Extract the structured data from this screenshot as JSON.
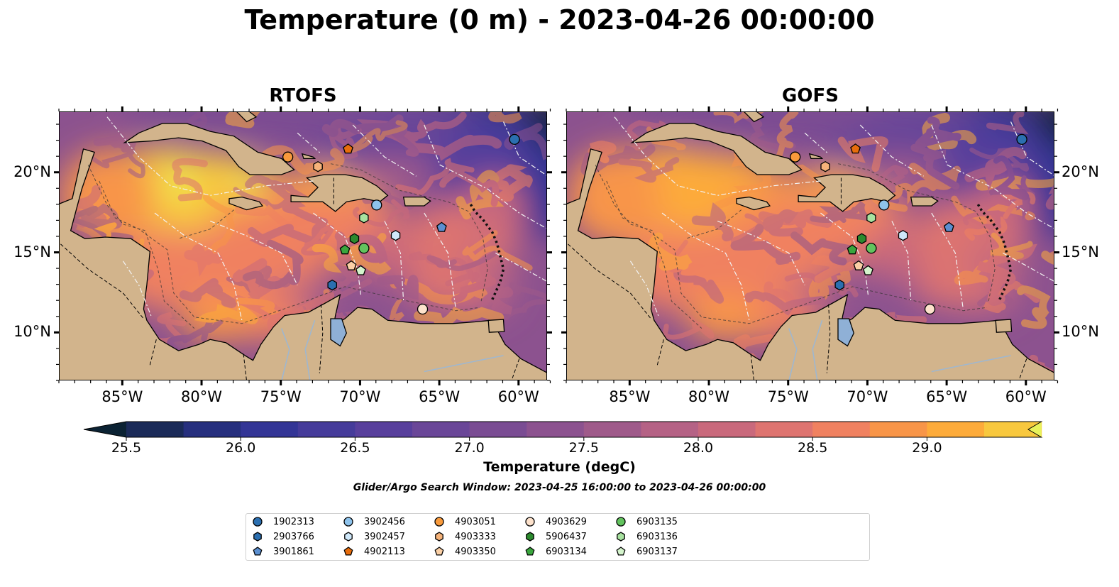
{
  "title": "Temperature (0 m) - 2023-04-26 00:00:00",
  "panels": [
    {
      "title": "RTOFS"
    },
    {
      "title": "GOFS"
    }
  ],
  "axes": {
    "lon_ticks": [
      "85°W",
      "80°W",
      "75°W",
      "70°W",
      "65°W",
      "60°W"
    ],
    "lat_ticks": [
      "20°N",
      "15°N",
      "10°N"
    ],
    "lon_range": [
      -89,
      -58.2
    ],
    "lat_range": [
      7.0,
      23.8
    ]
  },
  "colorbar": {
    "label": "Temperature (degC)",
    "ticks": [
      "25.5",
      "26.0",
      "26.5",
      "27.0",
      "27.5",
      "28.0",
      "28.5",
      "29.0"
    ],
    "levels": [
      25.25,
      25.5,
      25.75,
      26.0,
      26.25,
      26.5,
      26.75,
      27.0,
      27.25,
      27.5,
      27.75,
      28.0,
      28.25,
      28.5,
      28.75,
      29.0,
      29.25,
      29.5
    ],
    "colors": [
      "#0b2233",
      "#1a2a58",
      "#262f7e",
      "#333596",
      "#453b9a",
      "#583f9c",
      "#6a4698",
      "#7a4c93",
      "#8c528f",
      "#9f5a8a",
      "#b56285",
      "#c9697c",
      "#de7470",
      "#f08160",
      "#f89548",
      "#fdab3a",
      "#f8c83e",
      "#e8f35a"
    ],
    "extend": "both"
  },
  "search_window": "Glider/Argo Search Window: 2023-04-25 16:00:00 to 2023-04-26 00:00:00",
  "floats": [
    {
      "id": "1902313",
      "marker": "circle",
      "color": "#2b6fb0",
      "rtofs": [
        -60.3,
        22.1
      ],
      "gofs": [
        -60.3,
        22.1
      ]
    },
    {
      "id": "2903766",
      "marker": "hexagon",
      "color": "#2b6fb0",
      "rtofs": [
        -71.8,
        13.0
      ],
      "gofs": [
        -71.8,
        13.0
      ]
    },
    {
      "id": "3901861",
      "marker": "pentagon",
      "color": "#5b8fd0",
      "rtofs": [
        -64.9,
        16.6
      ],
      "gofs": [
        -64.9,
        16.6
      ]
    },
    {
      "id": "3902456",
      "marker": "circle",
      "color": "#8ec3ec",
      "rtofs": [
        -69.0,
        18.0
      ],
      "gofs": [
        -69.0,
        18.0
      ]
    },
    {
      "id": "3902457",
      "marker": "hexagon",
      "color": "#cfe8fa",
      "rtofs": [
        -67.8,
        16.1
      ],
      "gofs": [
        -67.8,
        16.1
      ]
    },
    {
      "id": "4902113",
      "marker": "pentagon",
      "color": "#e86d0c",
      "rtofs": [
        -70.8,
        21.5
      ],
      "gofs": [
        -70.8,
        21.5
      ]
    },
    {
      "id": "4903051",
      "marker": "circle",
      "color": "#f89a3c",
      "rtofs": [
        -74.6,
        21.0
      ],
      "gofs": [
        -74.6,
        21.0
      ]
    },
    {
      "id": "4903333",
      "marker": "hexagon",
      "color": "#f6b37a",
      "rtofs": [
        -72.7,
        20.4
      ],
      "gofs": [
        -72.7,
        20.4
      ]
    },
    {
      "id": "4903350",
      "marker": "pentagon",
      "color": "#fbd0a6",
      "rtofs": [
        -70.6,
        14.2
      ],
      "gofs": [
        -70.6,
        14.2
      ]
    },
    {
      "id": "4903629",
      "marker": "circle",
      "color": "#fde2cc",
      "rtofs": [
        -66.1,
        11.5
      ],
      "gofs": [
        -66.1,
        11.5
      ]
    },
    {
      "id": "5906437",
      "marker": "hexagon",
      "color": "#2c8a2e",
      "rtofs": [
        -70.4,
        15.9
      ],
      "gofs": [
        -70.4,
        15.9
      ]
    },
    {
      "id": "6903134",
      "marker": "pentagon",
      "color": "#3aa63d",
      "rtofs": [
        -71.0,
        15.2
      ],
      "gofs": [
        -71.0,
        15.2
      ]
    },
    {
      "id": "6903135",
      "marker": "circle",
      "color": "#62c35e",
      "rtofs": [
        -69.8,
        15.3
      ],
      "gofs": [
        -69.8,
        15.3
      ]
    },
    {
      "id": "6903136",
      "marker": "hexagon",
      "color": "#a8e2a0",
      "rtofs": [
        -69.8,
        17.2
      ],
      "gofs": [
        -69.8,
        17.2
      ]
    },
    {
      "id": "6903137",
      "marker": "pentagon",
      "color": "#d4f4cc",
      "rtofs": [
        -70.0,
        13.9
      ],
      "gofs": [
        -70.0,
        13.9
      ]
    }
  ]
}
